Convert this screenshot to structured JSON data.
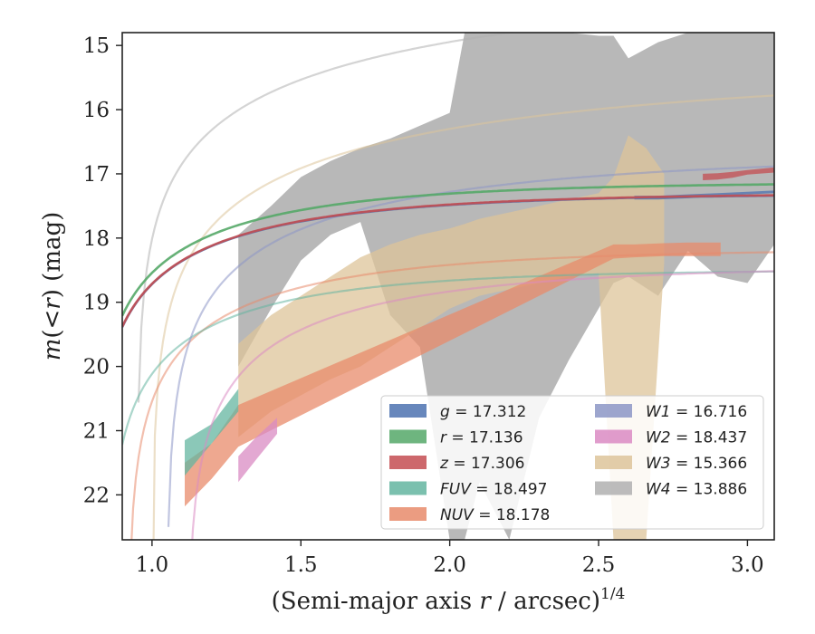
{
  "chart_data": {
    "type": "area",
    "title": "",
    "xlabel": {
      "prefix": "(Semi-major axis ",
      "var": "r",
      "suffix": " / arcsec)",
      "exponent": "1/4"
    },
    "ylabel": {
      "func": "m",
      "open": "(<",
      "var": "r",
      "close": ")",
      "unit": " (mag)"
    },
    "xlim": [
      0.9,
      3.09
    ],
    "ylim": [
      22.7,
      14.8
    ],
    "y_inverted": true,
    "xticks": [
      "1.0",
      "1.5",
      "2.0",
      "2.5",
      "3.0"
    ],
    "xtick_values": [
      1.0,
      1.5,
      2.0,
      2.5,
      3.0
    ],
    "yticks": [
      "15",
      "16",
      "17",
      "18",
      "19",
      "20",
      "21",
      "22"
    ],
    "ytick_values": [
      15,
      16,
      17,
      18,
      19,
      20,
      21,
      22
    ],
    "grid": false,
    "legend_placement": "lower-right",
    "series": [
      {
        "name": "g",
        "value": "17.312",
        "color": "#4c72b0",
        "band_x": [
          2.62,
          2.7,
          2.8,
          2.9,
          3.0,
          3.09
        ],
        "band_lower": [
          17.4,
          17.4,
          17.38,
          17.35,
          17.32,
          17.3
        ],
        "band_upper": [
          17.34,
          17.34,
          17.32,
          17.3,
          17.28,
          17.26
        ],
        "fit": {
          "m_inf": 17.312,
          "k": 1.6,
          "x0": 0.8
        }
      },
      {
        "name": "r",
        "value": "17.136",
        "color": "#55a868",
        "band_x": [],
        "band_lower": [],
        "band_upper": [],
        "fit": {
          "m_inf": 17.136,
          "k": 1.6,
          "x0": 0.8
        }
      },
      {
        "name": "z",
        "value": "17.306",
        "color": "#c44e52",
        "band_x": [
          2.85,
          2.9,
          2.95,
          3.0,
          3.09
        ],
        "band_lower": [
          17.1,
          17.09,
          17.06,
          17.01,
          16.98
        ],
        "band_upper": [
          17.0,
          16.99,
          16.97,
          16.94,
          16.9
        ],
        "fit": {
          "m_inf": 17.306,
          "k": 1.6,
          "x0": 0.8
        }
      },
      {
        "name": "FUV",
        "value": "18.497",
        "color": "#64b5a0",
        "band_x": [
          1.11,
          1.2,
          1.29
        ],
        "band_lower": [
          21.7,
          21.2,
          20.7
        ],
        "band_upper": [
          21.15,
          20.9,
          20.35
        ],
        "fit": {
          "m_inf": 18.497,
          "k": 1.7,
          "x0": 0.85
        }
      },
      {
        "name": "NUV",
        "value": "18.178",
        "color": "#e88b6b",
        "band_x": [
          1.11,
          1.2,
          1.29,
          2.55,
          2.62,
          2.72,
          2.8,
          2.91
        ],
        "band_lower": [
          22.18,
          21.75,
          21.25,
          18.32,
          18.3,
          18.28,
          18.28,
          18.28
        ],
        "band_upper": [
          21.5,
          21.2,
          20.6,
          18.1,
          18.1,
          18.08,
          18.07,
          18.07
        ],
        "fit": {
          "m_inf": 18.178,
          "k": 1.5,
          "x0": 0.92
        }
      },
      {
        "name": "W1",
        "value": "16.716",
        "color": "#8c96c6",
        "band_x": [],
        "band_lower": [],
        "band_upper": [],
        "fit": {
          "m_inf": 16.716,
          "k": 0.95,
          "x0": 1.05
        }
      },
      {
        "name": "W2",
        "value": "18.437",
        "color": "#da8bc3",
        "band_x": [
          1.29,
          1.35,
          1.42
        ],
        "band_lower": [
          21.8,
          21.45,
          21.05
        ],
        "band_upper": [
          21.4,
          21.1,
          20.8
        ],
        "fit": {
          "m_inf": 18.437,
          "k": 1.35,
          "x0": 1.12
        }
      },
      {
        "name": "W3",
        "value": "15.366",
        "color": "#ddc49a",
        "band_x": [
          1.29,
          1.4,
          1.5,
          1.6,
          1.7,
          1.8,
          1.9,
          2.0,
          2.05,
          2.1,
          2.2,
          2.3,
          2.4,
          2.5,
          2.55,
          2.6,
          2.66,
          2.72
        ],
        "band_lower": [
          21.1,
          20.7,
          20.45,
          20.2,
          20.0,
          19.7,
          19.4,
          19.1,
          19.0,
          18.9,
          18.8,
          18.7,
          18.6,
          18.55,
          22.7,
          22.7,
          22.7,
          18.4
        ],
        "band_upper": [
          19.65,
          19.2,
          18.9,
          18.6,
          18.3,
          18.1,
          17.95,
          17.85,
          17.78,
          17.7,
          17.6,
          17.5,
          17.4,
          17.3,
          17.05,
          16.4,
          16.6,
          17.0
        ],
        "fit": {
          "m_inf": 15.366,
          "k": 0.55,
          "x0": 1.0
        }
      },
      {
        "name": "W4",
        "value": "13.886",
        "color": "#b0b0b0",
        "band_x": [
          1.29,
          1.4,
          1.5,
          1.6,
          1.7,
          1.8,
          1.9,
          2.0,
          2.05,
          2.1,
          2.2,
          2.3,
          2.4,
          2.5,
          2.55,
          2.6,
          2.7,
          2.8,
          2.9,
          3.0,
          3.09
        ],
        "band_lower": [
          20.0,
          19.1,
          18.35,
          17.95,
          17.75,
          19.2,
          19.7,
          22.7,
          22.7,
          21.8,
          22.7,
          20.8,
          19.9,
          19.1,
          18.7,
          18.6,
          18.9,
          18.2,
          18.6,
          18.7,
          18.1
        ],
        "band_upper": [
          17.95,
          17.5,
          17.05,
          16.8,
          16.6,
          16.45,
          16.25,
          16.05,
          14.8,
          14.8,
          14.8,
          14.8,
          14.8,
          14.85,
          14.85,
          15.2,
          14.95,
          14.8,
          14.8,
          14.8,
          14.8
        ],
        "fit": {
          "m_inf": 13.886,
          "k": 0.45,
          "x0": 0.95
        }
      }
    ]
  }
}
